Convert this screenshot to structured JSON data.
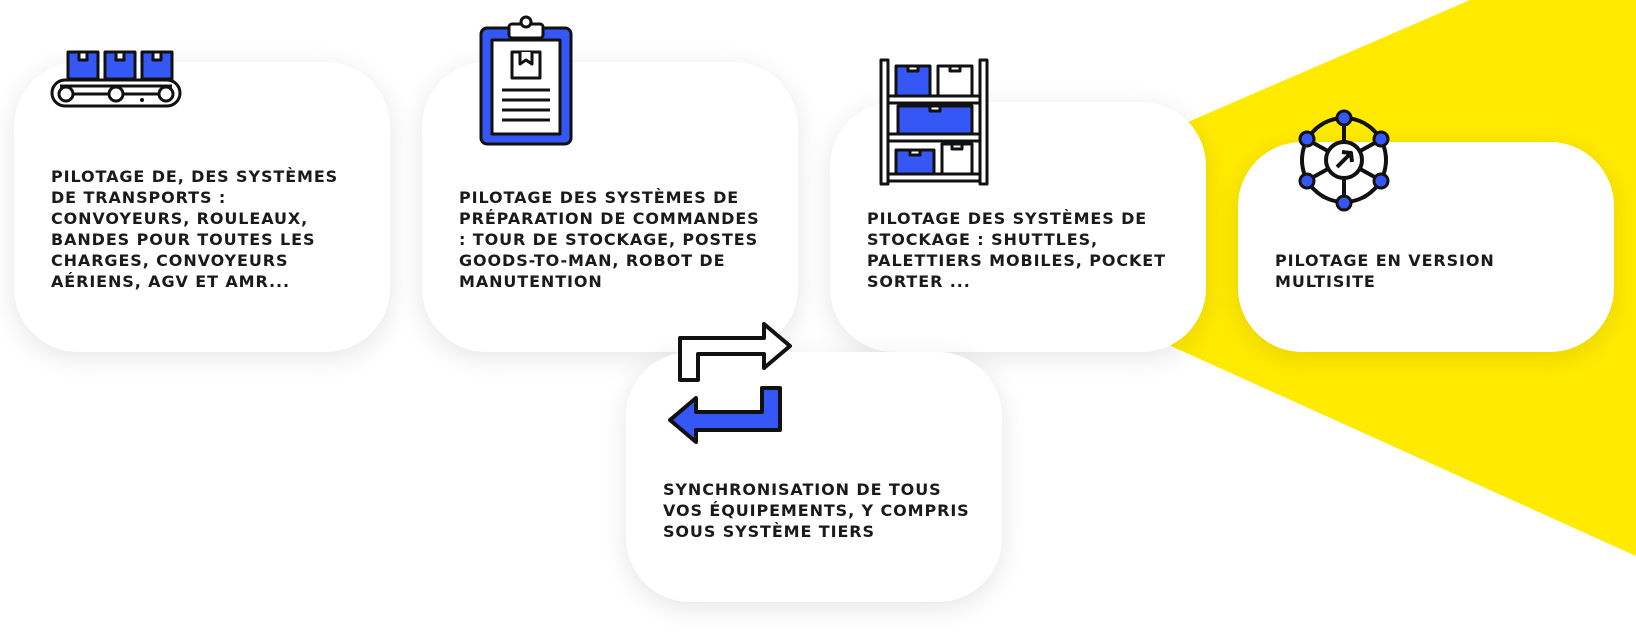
{
  "colors": {
    "accent_yellow": "#FFEA00",
    "icon_blue": "#3457F5",
    "icon_stroke": "#111111",
    "card_background": "#FFFFFF",
    "text": "#1A1A1A"
  },
  "cards": [
    {
      "icon": "conveyor-boxes-icon",
      "text": "PILOTAGE DE, DES SYSTÈMES DE TRANSPORTS : CONVOYEURS, ROULEAUX, BANDES POUR TOUTES LES CHARGES, CONVOYEURS AÉRIENS, AGV ET AMR..."
    },
    {
      "icon": "clipboard-icon",
      "text": "PILOTAGE DES SYSTÈMES DE PRÉPARATION DE COMMANDES : TOUR DE STOCKAGE, POSTES GOODS-TO-MAN, ROBOT DE MANUTENTION"
    },
    {
      "icon": "storage-shelf-icon",
      "text": "PILOTAGE DES SYSTÈMES DE STOCKAGE : SHUTTLES, PALETTIERS MOBILES, POCKET SORTER ..."
    },
    {
      "icon": "network-hub-icon",
      "text": "PILOTAGE EN VERSION MULTISITE"
    },
    {
      "icon": "sync-arrows-icon",
      "text": "SYNCHRONISATION DE TOUS VOS ÉQUIPEMENTS, Y COMPRIS SOUS SYSTÈME TIERS"
    }
  ]
}
